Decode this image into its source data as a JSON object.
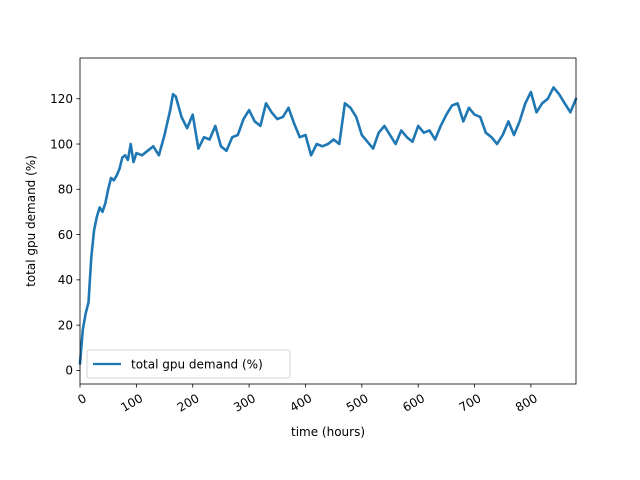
{
  "chart_data": {
    "type": "line",
    "title": "",
    "xlabel": "time (hours)",
    "ylabel": "total gpu demand (%)",
    "xlim": [
      0,
      880
    ],
    "ylim": [
      -6,
      138
    ],
    "x_ticks": [
      0,
      100,
      200,
      300,
      400,
      500,
      600,
      700,
      800
    ],
    "x_tick_labels": [
      "0",
      "100",
      "200",
      "300",
      "400",
      "500",
      "600",
      "700",
      "800"
    ],
    "y_ticks": [
      0,
      20,
      40,
      60,
      80,
      100,
      120
    ],
    "y_tick_labels": [
      "0",
      "20",
      "40",
      "60",
      "80",
      "100",
      "120"
    ],
    "grid": false,
    "legend": {
      "position": "lower-left",
      "entries": [
        "total gpu demand (%)"
      ]
    },
    "series": [
      {
        "name": "total gpu demand (%)",
        "color": "#1f77b4",
        "points": [
          [
            0,
            3
          ],
          [
            5,
            18
          ],
          [
            10,
            25
          ],
          [
            15,
            30
          ],
          [
            20,
            50
          ],
          [
            25,
            62
          ],
          [
            30,
            68
          ],
          [
            35,
            72
          ],
          [
            40,
            70
          ],
          [
            45,
            74
          ],
          [
            50,
            80
          ],
          [
            55,
            85
          ],
          [
            60,
            84
          ],
          [
            65,
            86
          ],
          [
            70,
            89
          ],
          [
            75,
            94
          ],
          [
            80,
            95
          ],
          [
            85,
            93
          ],
          [
            90,
            100
          ],
          [
            95,
            92
          ],
          [
            100,
            96
          ],
          [
            110,
            95
          ],
          [
            120,
            97
          ],
          [
            130,
            99
          ],
          [
            140,
            95
          ],
          [
            150,
            104
          ],
          [
            160,
            115
          ],
          [
            165,
            122
          ],
          [
            170,
            121
          ],
          [
            180,
            112
          ],
          [
            190,
            107
          ],
          [
            200,
            113
          ],
          [
            210,
            98
          ],
          [
            220,
            103
          ],
          [
            230,
            102
          ],
          [
            240,
            108
          ],
          [
            250,
            99
          ],
          [
            260,
            97
          ],
          [
            270,
            103
          ],
          [
            280,
            104
          ],
          [
            290,
            111
          ],
          [
            300,
            115
          ],
          [
            310,
            110
          ],
          [
            320,
            108
          ],
          [
            330,
            118
          ],
          [
            340,
            114
          ],
          [
            350,
            111
          ],
          [
            360,
            112
          ],
          [
            370,
            116
          ],
          [
            380,
            109
          ],
          [
            390,
            103
          ],
          [
            400,
            104
          ],
          [
            410,
            95
          ],
          [
            420,
            100
          ],
          [
            430,
            99
          ],
          [
            440,
            100
          ],
          [
            450,
            102
          ],
          [
            460,
            100
          ],
          [
            470,
            118
          ],
          [
            480,
            116
          ],
          [
            490,
            112
          ],
          [
            500,
            104
          ],
          [
            510,
            101
          ],
          [
            520,
            98
          ],
          [
            530,
            105
          ],
          [
            540,
            108
          ],
          [
            550,
            104
          ],
          [
            560,
            100
          ],
          [
            570,
            106
          ],
          [
            580,
            103
          ],
          [
            590,
            101
          ],
          [
            600,
            108
          ],
          [
            610,
            105
          ],
          [
            620,
            106
          ],
          [
            630,
            102
          ],
          [
            640,
            108
          ],
          [
            650,
            113
          ],
          [
            660,
            117
          ],
          [
            670,
            118
          ],
          [
            680,
            110
          ],
          [
            690,
            116
          ],
          [
            700,
            113
          ],
          [
            710,
            112
          ],
          [
            720,
            105
          ],
          [
            730,
            103
          ],
          [
            740,
            100
          ],
          [
            750,
            104
          ],
          [
            760,
            110
          ],
          [
            770,
            104
          ],
          [
            780,
            110
          ],
          [
            790,
            118
          ],
          [
            800,
            123
          ],
          [
            810,
            114
          ],
          [
            820,
            118
          ],
          [
            830,
            120
          ],
          [
            840,
            125
          ],
          [
            850,
            122
          ],
          [
            860,
            118
          ],
          [
            870,
            114
          ],
          [
            880,
            120
          ]
        ]
      }
    ]
  }
}
